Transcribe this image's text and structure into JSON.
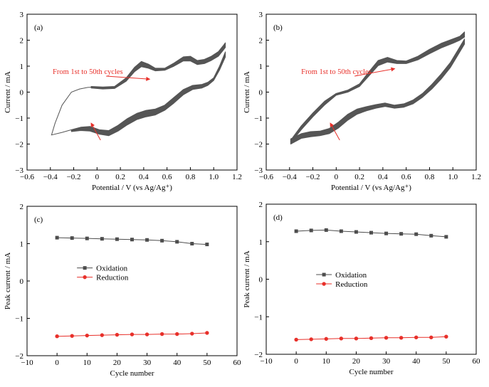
{
  "colors": {
    "cv_curve": "#555555",
    "annotation": "#e8302a",
    "oxidation": "#4d4d4d",
    "reduction": "#e8302a"
  },
  "chart_data": [
    {
      "panel_label": "(a)",
      "type": "line",
      "xlabel": "Potential / V (vs Ag/Ag⁺)",
      "ylabel": "Current / mA",
      "xlim": [
        -0.6,
        1.2
      ],
      "ylim": [
        -3,
        3
      ],
      "xticks": [
        -0.6,
        -0.4,
        -0.2,
        0,
        0.2,
        0.4,
        0.6,
        0.8,
        1.0,
        1.2
      ],
      "xtick_labels": [
        "−0.6",
        "−0.4",
        "−0.2",
        "0",
        "0.2",
        "0.4",
        "0.6",
        "0.8",
        "1.0",
        "1.2"
      ],
      "yticks": [
        -3,
        -2,
        -1,
        0,
        1,
        2,
        3
      ],
      "ytick_labels": [
        "−3",
        "−2",
        "−1",
        "0",
        "1",
        "2",
        "3"
      ],
      "annotation": {
        "text": "From 1st to 50th cycles",
        "text_at": [
          -0.38,
          0.7
        ],
        "arrow_to_up": [
          0.45,
          0.5
        ],
        "arrow_from_down": [
          0.03,
          -1.85
        ],
        "arrow_to_down": [
          -0.05,
          -1.2
        ]
      },
      "band_top": {
        "x": [
          -0.05,
          0.05,
          0.15,
          0.25,
          0.32,
          0.38,
          0.44,
          0.5,
          0.58,
          0.66,
          0.74,
          0.8,
          0.86,
          0.92,
          0.98,
          1.04,
          1.08,
          1.1
        ],
        "y_outer": [
          0.22,
          0.2,
          0.22,
          0.55,
          0.95,
          1.18,
          1.08,
          0.92,
          0.92,
          1.12,
          1.36,
          1.38,
          1.22,
          1.26,
          1.38,
          1.56,
          1.78,
          1.9
        ],
        "y_inner": [
          0.16,
          0.12,
          0.14,
          0.42,
          0.78,
          0.98,
          0.92,
          0.82,
          0.84,
          1.0,
          1.2,
          1.2,
          1.06,
          1.1,
          1.22,
          1.38,
          1.6,
          1.72
        ]
      },
      "band_bottom": {
        "x": [
          1.1,
          1.05,
          1.0,
          0.95,
          0.9,
          0.82,
          0.74,
          0.66,
          0.58,
          0.5,
          0.42,
          0.34,
          0.26,
          0.18,
          0.1,
          0.02,
          -0.06,
          -0.14,
          -0.22
        ],
        "y_outer": [
          1.55,
          1.0,
          0.55,
          0.38,
          0.3,
          0.26,
          0.1,
          -0.2,
          -0.5,
          -0.65,
          -0.7,
          -0.82,
          -1.02,
          -1.28,
          -1.48,
          -1.45,
          -1.32,
          -1.35,
          -1.45
        ],
        "y_inner": [
          1.35,
          0.85,
          0.45,
          0.26,
          0.16,
          0.1,
          -0.1,
          -0.42,
          -0.7,
          -0.88,
          -0.95,
          -1.06,
          -1.26,
          -1.5,
          -1.68,
          -1.62,
          -1.5,
          -1.48,
          -1.52
        ]
      },
      "tail_curve": {
        "x": [
          -0.22,
          -0.3,
          -0.39,
          -0.36,
          -0.3,
          -0.22,
          -0.15,
          -0.08,
          -0.05
        ],
        "y": [
          -1.45,
          -1.55,
          -1.65,
          -1.2,
          -0.5,
          0.0,
          0.12,
          0.18,
          0.19
        ]
      }
    },
    {
      "panel_label": "(b)",
      "type": "line",
      "xlabel": "Potential / V (vs Ag/Ag⁺)",
      "ylabel": "Current / mA",
      "xlim": [
        -0.6,
        1.2
      ],
      "ylim": [
        -3,
        3
      ],
      "xticks": [
        -0.6,
        -0.4,
        -0.2,
        0,
        0.2,
        0.4,
        0.6,
        0.8,
        1.0,
        1.2
      ],
      "xtick_labels": [
        "−0.6",
        "−0.4",
        "−0.2",
        "0",
        "0.2",
        "0.4",
        "0.6",
        "0.8",
        "1.0",
        "1.2"
      ],
      "yticks": [
        -3,
        -2,
        -1,
        0,
        1,
        2,
        3
      ],
      "ytick_labels": [
        "−3",
        "−2",
        "−1",
        "0",
        "1",
        "2",
        "3"
      ],
      "annotation": {
        "text": "From 1st to 50th cycles",
        "text_at": [
          -0.3,
          0.7
        ],
        "arrow_to_up": [
          0.5,
          0.9
        ],
        "arrow_from_down": [
          0.03,
          -1.85
        ],
        "arrow_to_down": [
          -0.05,
          -1.2
        ]
      },
      "band_top": {
        "x": [
          -0.39,
          -0.3,
          -0.2,
          -0.1,
          0.0,
          0.1,
          0.2,
          0.28,
          0.36,
          0.44,
          0.52,
          0.6,
          0.7,
          0.8,
          0.9,
          1.0,
          1.06,
          1.1
        ],
        "y_outer": [
          -1.85,
          -1.3,
          -0.8,
          -0.35,
          -0.05,
          0.08,
          0.32,
          0.78,
          1.22,
          1.34,
          1.22,
          1.2,
          1.38,
          1.65,
          1.88,
          2.05,
          2.15,
          2.32
        ],
        "y_inner": [
          -1.95,
          -1.45,
          -0.95,
          -0.5,
          -0.12,
          0.0,
          0.22,
          0.62,
          1.02,
          1.16,
          1.1,
          1.1,
          1.24,
          1.48,
          1.7,
          1.88,
          2.0,
          2.12
        ]
      },
      "band_bottom": {
        "x": [
          1.1,
          1.04,
          0.98,
          0.9,
          0.82,
          0.74,
          0.66,
          0.58,
          0.5,
          0.42,
          0.34,
          0.26,
          0.18,
          0.1,
          0.02,
          -0.06,
          -0.14,
          -0.22,
          -0.3,
          -0.39
        ],
        "y_outer": [
          2.05,
          1.6,
          1.15,
          0.7,
          0.3,
          -0.05,
          -0.3,
          -0.45,
          -0.5,
          -0.42,
          -0.48,
          -0.56,
          -0.65,
          -0.85,
          -1.15,
          -1.4,
          -1.5,
          -1.52,
          -1.6,
          -1.8
        ],
        "y_inner": [
          1.85,
          1.4,
          0.95,
          0.5,
          0.12,
          -0.2,
          -0.45,
          -0.58,
          -0.62,
          -0.55,
          -0.62,
          -0.72,
          -0.85,
          -1.08,
          -1.38,
          -1.6,
          -1.68,
          -1.72,
          -1.78,
          -2.0
        ]
      }
    },
    {
      "panel_label": "(c)",
      "type": "line",
      "xlabel": "Cycle number",
      "ylabel": "Peak current / mA",
      "xlim": [
        -10,
        60
      ],
      "ylim": [
        -2,
        2
      ],
      "xticks": [
        -10,
        0,
        10,
        20,
        30,
        40,
        50,
        60
      ],
      "xtick_labels": [
        "−10",
        "0",
        "10",
        "20",
        "30",
        "40",
        "50",
        "60"
      ],
      "yticks": [
        -2,
        -1,
        0,
        1,
        2
      ],
      "ytick_labels": [
        "−2",
        "−1",
        "0",
        "1",
        "2"
      ],
      "legend": {
        "position": "center-left"
      },
      "x": [
        0,
        5,
        10,
        15,
        20,
        25,
        30,
        35,
        40,
        45,
        50
      ],
      "series": [
        {
          "name": "Oxidation",
          "marker": "square",
          "values": [
            1.16,
            1.15,
            1.14,
            1.13,
            1.12,
            1.11,
            1.1,
            1.08,
            1.05,
            1.0,
            0.98
          ]
        },
        {
          "name": "Reduction",
          "marker": "circle",
          "values": [
            -1.48,
            -1.47,
            -1.46,
            -1.45,
            -1.44,
            -1.43,
            -1.43,
            -1.42,
            -1.42,
            -1.41,
            -1.39
          ]
        }
      ]
    },
    {
      "panel_label": "(d)",
      "type": "line",
      "xlabel": "Cycle number",
      "ylabel": "Peak current / mA",
      "xlim": [
        -10,
        60
      ],
      "ylim": [
        -2,
        2
      ],
      "xticks": [
        -10,
        0,
        10,
        20,
        30,
        40,
        50,
        60
      ],
      "xtick_labels": [
        "−10",
        "0",
        "10",
        "20",
        "30",
        "40",
        "50",
        "60"
      ],
      "yticks": [
        -2,
        -1,
        0,
        1,
        2
      ],
      "ytick_labels": [
        "−2",
        "−1",
        "0",
        "1",
        "2"
      ],
      "legend": {
        "position": "center-left"
      },
      "x": [
        0,
        5,
        10,
        15,
        20,
        25,
        30,
        35,
        40,
        45,
        50
      ],
      "series": [
        {
          "name": "Oxidation",
          "marker": "square",
          "values": [
            1.28,
            1.3,
            1.31,
            1.28,
            1.26,
            1.24,
            1.22,
            1.21,
            1.2,
            1.16,
            1.13
          ]
        },
        {
          "name": "Reduction",
          "marker": "circle",
          "values": [
            -1.61,
            -1.6,
            -1.59,
            -1.58,
            -1.58,
            -1.57,
            -1.56,
            -1.56,
            -1.55,
            -1.55,
            -1.53
          ]
        }
      ]
    }
  ]
}
